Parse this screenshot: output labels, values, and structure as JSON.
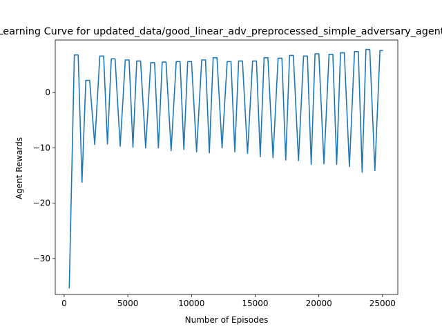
{
  "chart_data": {
    "type": "line",
    "title": "Learning Curve for updated_data/good_linear_adv_preprocessed_simple_adversary_agent",
    "xlabel": "Number of Episodes",
    "ylabel": "Agent Rewards",
    "xlim": [
      -700,
      26200
    ],
    "ylim": [
      -36.5,
      9.5
    ],
    "xticks": [
      0,
      5000,
      10000,
      15000,
      20000,
      25000
    ],
    "yticks": [
      -30,
      -20,
      -10,
      0
    ],
    "grid": false,
    "series": [
      {
        "color": "#1f77b4",
        "x": [
          400,
          800,
          1100,
          1400,
          1700,
          2000,
          2400,
          2800,
          3100,
          3400,
          3700,
          4000,
          4400,
          4800,
          5100,
          5400,
          5700,
          6000,
          6400,
          6800,
          7100,
          7400,
          7700,
          8000,
          8400,
          8800,
          9100,
          9400,
          9700,
          10000,
          10400,
          10800,
          11100,
          11400,
          11700,
          12000,
          12400,
          12800,
          13100,
          13400,
          13700,
          14000,
          14400,
          14800,
          15100,
          15400,
          15700,
          16000,
          16400,
          16800,
          17100,
          17400,
          17700,
          18000,
          18400,
          18800,
          19100,
          19400,
          19700,
          20000,
          20400,
          20800,
          21100,
          21400,
          21700,
          22000,
          22400,
          22800,
          23100,
          23400,
          23700,
          24000,
          24400,
          24800,
          25000
        ],
        "y": [
          -35.3,
          6.8,
          6.8,
          -16.2,
          2.2,
          2.2,
          -9.4,
          6.6,
          6.6,
          -9.3,
          6.1,
          6.1,
          -9.7,
          5.9,
          5.9,
          -9.9,
          5.7,
          5.7,
          -10.0,
          5.4,
          5.4,
          -10.0,
          5.5,
          5.5,
          -10.5,
          5.6,
          5.6,
          -10.3,
          5.6,
          5.6,
          -10.7,
          5.9,
          5.9,
          -10.9,
          6.3,
          6.3,
          -10.0,
          5.6,
          5.6,
          -10.7,
          5.7,
          5.7,
          -11.0,
          5.7,
          5.7,
          -11.6,
          6.3,
          6.3,
          -11.8,
          6.2,
          6.2,
          -12.2,
          6.7,
          6.7,
          -12.3,
          6.6,
          6.6,
          -13.0,
          7.0,
          7.0,
          -12.9,
          6.9,
          6.9,
          -13.0,
          7.2,
          7.2,
          -13.4,
          7.4,
          7.4,
          -14.4,
          7.8,
          7.8,
          -14.1,
          7.6,
          7.6
        ]
      }
    ]
  }
}
